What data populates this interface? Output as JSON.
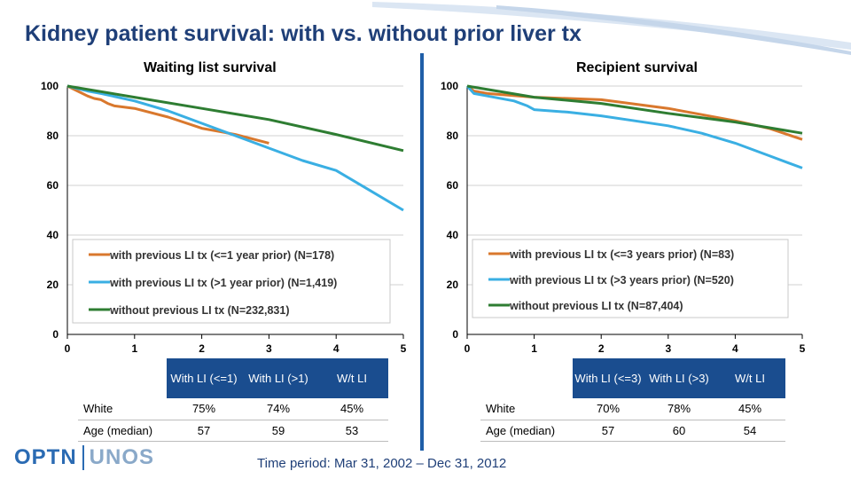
{
  "header": {
    "title": "Kidney patient survival: with vs. without prior liver tx"
  },
  "footer": {
    "time_period": "Time period: Mar 31, 2002 – Dec 31, 2012"
  },
  "logo": {
    "left": "OPTN",
    "right": "UNOS"
  },
  "colors": {
    "orange": "#d9782d",
    "blue": "#3aafe3",
    "green": "#2e7d32",
    "header_blue": "#1a4d8f",
    "title_blue": "#1f3f78"
  },
  "chart_data": [
    {
      "type": "line",
      "title": "Waiting list survival",
      "xlim": [
        0,
        5
      ],
      "ylim": [
        0,
        100
      ],
      "xticks": [
        "0",
        "1",
        "2",
        "3",
        "4",
        "5"
      ],
      "yticks": [
        "0",
        "20",
        "40",
        "60",
        "80",
        "100"
      ],
      "grid": true,
      "legend_position": "bottom",
      "series": [
        {
          "name": "with previous  LI tx (<=1 year prior) (N=178)",
          "color": "#d9782d",
          "x": [
            0,
            0.15,
            0.3,
            0.4,
            0.5,
            0.6,
            0.7,
            1.0,
            1.5,
            2.0,
            2.5,
            3.0
          ],
          "y": [
            100,
            98,
            96,
            95,
            94.5,
            93,
            92,
            91,
            87.5,
            83,
            80.5,
            77
          ]
        },
        {
          "name": "with previous  LI tx (>1 year prior) (N=1,419)",
          "color": "#3aafe3",
          "x": [
            0,
            0.3,
            0.5,
            1.0,
            1.5,
            2.0,
            2.5,
            3.0,
            3.5,
            4.0,
            4.5,
            5.0
          ],
          "y": [
            100,
            98,
            97,
            94,
            90,
            85,
            80,
            75,
            70,
            66,
            58,
            50
          ]
        },
        {
          "name": "without previous LI tx (N=232,831)",
          "color": "#2e7d32",
          "x": [
            0,
            1,
            2,
            3,
            4,
            5
          ],
          "y": [
            100,
            95.5,
            91,
            86.5,
            80.5,
            74
          ]
        }
      ]
    },
    {
      "type": "line",
      "title": "Recipient survival",
      "xlim": [
        0,
        5
      ],
      "ylim": [
        0,
        100
      ],
      "xticks": [
        "0",
        "1",
        "2",
        "3",
        "4",
        "5"
      ],
      "yticks": [
        "0",
        "20",
        "40",
        "60",
        "80",
        "100"
      ],
      "grid": true,
      "legend_position": "bottom",
      "series": [
        {
          "name": "with previous LI tx (<=3 years prior) (N=83)",
          "color": "#d9782d",
          "x": [
            0,
            0.1,
            0.3,
            1.0,
            2.0,
            3.0,
            3.5,
            4.0,
            4.5,
            5.0
          ],
          "y": [
            100,
            98,
            97,
            95.5,
            94.5,
            91,
            88.5,
            86,
            83,
            78.5
          ]
        },
        {
          "name": "with previous LI tx (>3 years prior) (N=520)",
          "color": "#3aafe3",
          "x": [
            0,
            0.1,
            0.3,
            0.7,
            0.9,
            1.0,
            1.5,
            2.0,
            2.5,
            3.0,
            3.5,
            4.0,
            4.5,
            5.0
          ],
          "y": [
            100,
            97,
            96,
            94,
            92,
            90.5,
            89.5,
            88,
            86,
            84,
            81,
            77,
            72,
            67
          ]
        },
        {
          "name": "without previous LI tx (N=87,404)",
          "color": "#2e7d32",
          "x": [
            0,
            1,
            2,
            3,
            4,
            5
          ],
          "y": [
            100,
            95.5,
            93,
            89,
            85.5,
            81
          ]
        }
      ]
    }
  ],
  "tables": [
    {
      "headers": [
        "With LI (<=1)",
        "With LI (>1)",
        "W/t LI"
      ],
      "rows": [
        {
          "label": "White",
          "values": [
            "75%",
            "74%",
            "45%"
          ]
        },
        {
          "label": "Age (median)",
          "values": [
            "57",
            "59",
            "53"
          ]
        }
      ]
    },
    {
      "headers": [
        "With LI (<=3)",
        "With LI (>3)",
        "W/t LI"
      ],
      "rows": [
        {
          "label": "White",
          "values": [
            "70%",
            "78%",
            "45%"
          ]
        },
        {
          "label": "Age (median)",
          "values": [
            "57",
            "60",
            "54"
          ]
        }
      ]
    }
  ]
}
